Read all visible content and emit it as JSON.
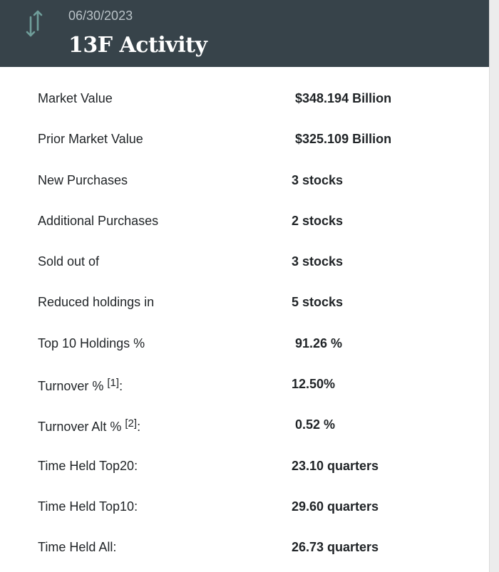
{
  "header": {
    "date": "06/30/2023",
    "title": "13F Activity",
    "icon": "sort-arrows-icon",
    "background_color": "#37434a",
    "icon_color": "#6f9e9a"
  },
  "stats": [
    {
      "label": "Market Value",
      "sup": "",
      "suffix": "",
      "value": "$348.194 Billion"
    },
    {
      "label": "Prior Market Value",
      "sup": "",
      "suffix": "",
      "value": "$325.109 Billion"
    },
    {
      "label": "New Purchases",
      "sup": "",
      "suffix": "",
      "value": "3 stocks"
    },
    {
      "label": "Additional Purchases",
      "sup": "",
      "suffix": "",
      "value": "2 stocks"
    },
    {
      "label": "Sold out of",
      "sup": "",
      "suffix": "",
      "value": "3 stocks"
    },
    {
      "label": "Reduced holdings in",
      "sup": "",
      "suffix": "",
      "value": "5 stocks"
    },
    {
      "label": "Top 10 Holdings %",
      "sup": "",
      "suffix": "",
      "value": "91.26 %"
    },
    {
      "label": "Turnover % ",
      "sup": "[1]",
      "suffix": ":",
      "value": "12.50%"
    },
    {
      "label": "Turnover Alt % ",
      "sup": "[2]",
      "suffix": ":",
      "value": "0.52 %"
    },
    {
      "label": "Time Held Top20:",
      "sup": "",
      "suffix": "",
      "value": "23.10 quarters"
    },
    {
      "label": "Time Held Top10:",
      "sup": "",
      "suffix": "",
      "value": "29.60 quarters"
    },
    {
      "label": "Time Held All:",
      "sup": "",
      "suffix": "",
      "value": "26.73 quarters"
    }
  ]
}
